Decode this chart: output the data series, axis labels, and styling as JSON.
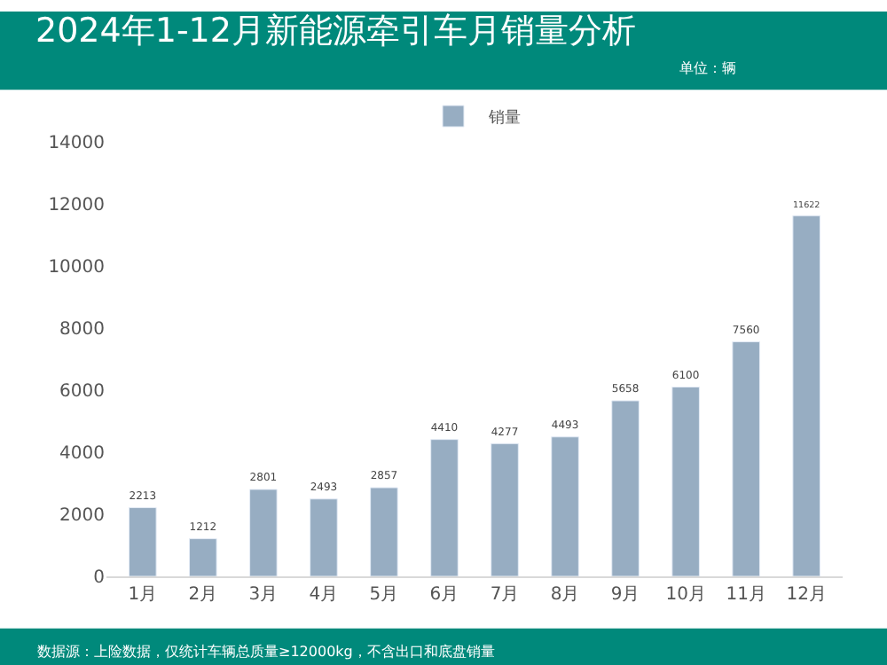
{
  "chart_data": {
    "type": "bar",
    "title": "2024年1-12月新能源牵引车月销量分析",
    "subtitle": "单位：辆",
    "categories": [
      "1月",
      "2月",
      "3月",
      "4月",
      "5月",
      "6月",
      "7月",
      "8月",
      "9月",
      "10月",
      "11月",
      "12月"
    ],
    "series": [
      {
        "name": "销量",
        "color": "#97adc2",
        "values": [
          2213,
          1212,
          2801,
          2493,
          2857,
          4410,
          4277,
          4493,
          5658,
          6100,
          7560,
          11622
        ]
      }
    ],
    "ylim": [
      0,
      14000
    ],
    "yticks": [
      0,
      2000,
      4000,
      6000,
      8000,
      10000,
      12000,
      14000
    ],
    "legend": "top",
    "data_labels": true,
    "annotations": [
      "数据源：上险数据，仅统计车辆总质量≥12000kg，不含出口和底盘销量"
    ]
  }
}
